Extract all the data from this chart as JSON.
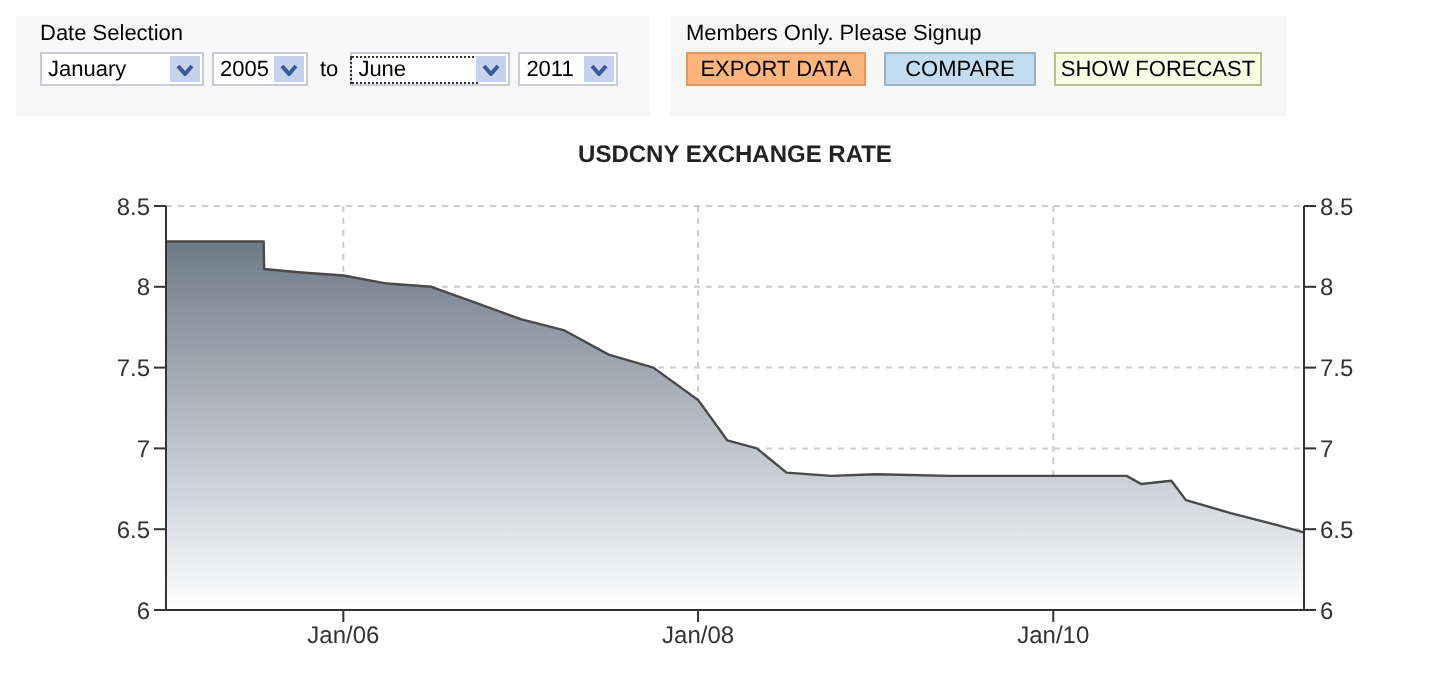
{
  "chart_data": {
    "type": "area",
    "title": "USDCNY EXCHANGE RATE",
    "annotations": [
      "Date Selection",
      "January",
      "2005",
      "to",
      "June",
      "2011",
      "Members Only. Please Signup",
      "EXPORT DATA",
      "COMPARE",
      "SHOW FORECAST"
    ],
    "x": [
      "2005-01-01",
      "2005-07-21",
      "2005-07-22",
      "2005-10-01",
      "2006-01-01",
      "2006-04-01",
      "2006-07-01",
      "2006-10-01",
      "2007-01-01",
      "2007-04-01",
      "2007-07-01",
      "2007-10-01",
      "2008-01-01",
      "2008-03-01",
      "2008-05-01",
      "2008-07-01",
      "2008-10-01",
      "2009-01-01",
      "2009-06-01",
      "2010-01-01",
      "2010-06-01",
      "2010-07-01",
      "2010-09-01",
      "2010-10-01",
      "2011-01-01",
      "2011-04-01",
      "2011-06-01"
    ],
    "series": [
      {
        "color": "#6e7a88",
        "values": [
          8.28,
          8.28,
          8.11,
          8.09,
          8.07,
          8.02,
          8.0,
          7.9,
          7.8,
          7.73,
          7.58,
          7.5,
          7.3,
          7.05,
          7.0,
          6.85,
          6.83,
          6.84,
          6.83,
          6.83,
          6.83,
          6.78,
          6.8,
          6.68,
          6.6,
          6.53,
          6.48
        ]
      }
    ],
    "xlim": [
      "2005-01-01",
      "2011-06-01"
    ],
    "xticks": [
      {
        "value": "2006-01-01",
        "label": "Jan/06"
      },
      {
        "value": "2008-01-01",
        "label": "Jan/08"
      },
      {
        "value": "2010-01-01",
        "label": "Jan/10"
      }
    ],
    "ylim": [
      6,
      8.5
    ],
    "yticks": [
      6,
      6.5,
      7,
      7.5,
      8,
      8.5
    ],
    "y2lim": [
      6,
      8.5
    ],
    "y2ticks": [
      6,
      6.5,
      7,
      7.5,
      8,
      8.5
    ],
    "grid": true
  }
}
